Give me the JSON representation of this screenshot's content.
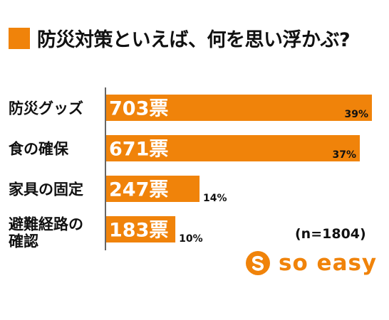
{
  "title": "防災対策といえば、何を思い浮かぶ?",
  "note": "(n=1804)",
  "logo": {
    "text": "so easy",
    "icon": "s-circle-icon"
  },
  "colors": {
    "accent": "#f0830a",
    "title_square": "#f0830a",
    "text": "#111111"
  },
  "chart_data": {
    "type": "bar",
    "orientation": "horizontal",
    "title": "防災対策といえば、何を思い浮かぶ?",
    "categories": [
      "防災グッズ",
      "食の確保",
      "家具の固定",
      "避難経路の確認"
    ],
    "category_lines": [
      [
        "防災グッズ"
      ],
      [
        "食の確保"
      ],
      [
        "家具の固定"
      ],
      [
        "避難経路の",
        "確認"
      ]
    ],
    "values": [
      703,
      671,
      247,
      183
    ],
    "value_labels": [
      "703票",
      "671票",
      "247票",
      "183票"
    ],
    "percent_labels": [
      "39%",
      "37%",
      "14%",
      "10%"
    ],
    "xlim": [
      0,
      1804
    ],
    "xlabel": "",
    "ylabel": "",
    "grid": false,
    "legend": "none"
  }
}
